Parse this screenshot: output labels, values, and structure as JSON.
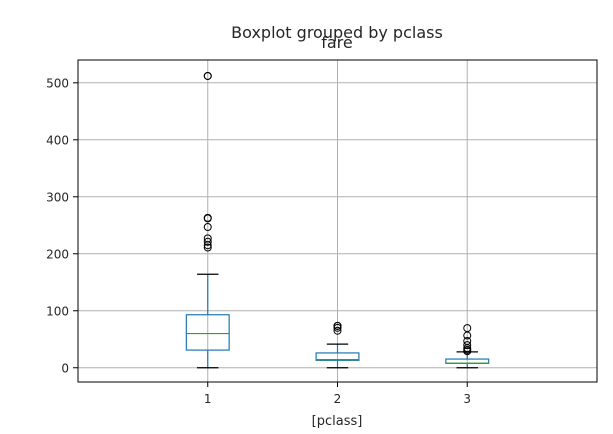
{
  "chart_data": {
    "type": "boxplot",
    "suptitle": "Boxplot grouped by pclass",
    "title": "fare",
    "xlabel": "[pclass]",
    "ylabel": "",
    "categories": [
      "1",
      "2",
      "3"
    ],
    "ylim": [
      -25,
      540
    ],
    "yticks": [
      0,
      100,
      200,
      300,
      400,
      500
    ],
    "grid": true,
    "colors": {
      "box": "#1f77b4",
      "median": "#2ca02c",
      "grid": "#b0b0b0",
      "axes": "#000000"
    },
    "boxes": [
      {
        "category": "1",
        "whisker_low": 0,
        "q1": 31,
        "median": 60,
        "q3": 93,
        "whisker_high": 164,
        "fliers": [
          211,
          215,
          221,
          227,
          247,
          262,
          263,
          512,
          512
        ]
      },
      {
        "category": "2",
        "whisker_low": 0,
        "q1": 13,
        "median": 14.25,
        "q3": 26,
        "whisker_high": 41.5,
        "fliers": [
          65,
          70,
          73.5,
          73.5
        ]
      },
      {
        "category": "3",
        "whisker_low": 0,
        "q1": 7.75,
        "median": 8.05,
        "q3": 15.25,
        "whisker_high": 27.9,
        "fliers": [
          29,
          31.3,
          34.4,
          39.7,
          46.9,
          56.5,
          69.55
        ]
      }
    ]
  }
}
